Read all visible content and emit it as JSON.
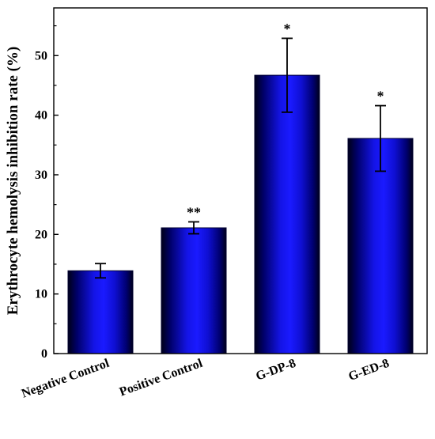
{
  "chart_data": {
    "type": "bar",
    "title": "",
    "xlabel": "",
    "ylabel": "Erythrocyte hemolysis inhibition rate (%)",
    "ylim": [
      0,
      58
    ],
    "yticks": [
      0,
      10,
      20,
      30,
      40,
      50
    ],
    "categories": [
      "Negative Control",
      "Positive Control",
      "G-DP-8",
      "G-ED-8"
    ],
    "values": [
      13.9,
      21.1,
      46.7,
      36.1
    ],
    "errors": [
      1.2,
      1.0,
      6.2,
      5.5
    ],
    "significance": [
      "",
      "**",
      "*",
      "*"
    ],
    "bar_color": "#1010d8",
    "bar_edge_color": "#000030",
    "grid": false,
    "legend": "none"
  }
}
